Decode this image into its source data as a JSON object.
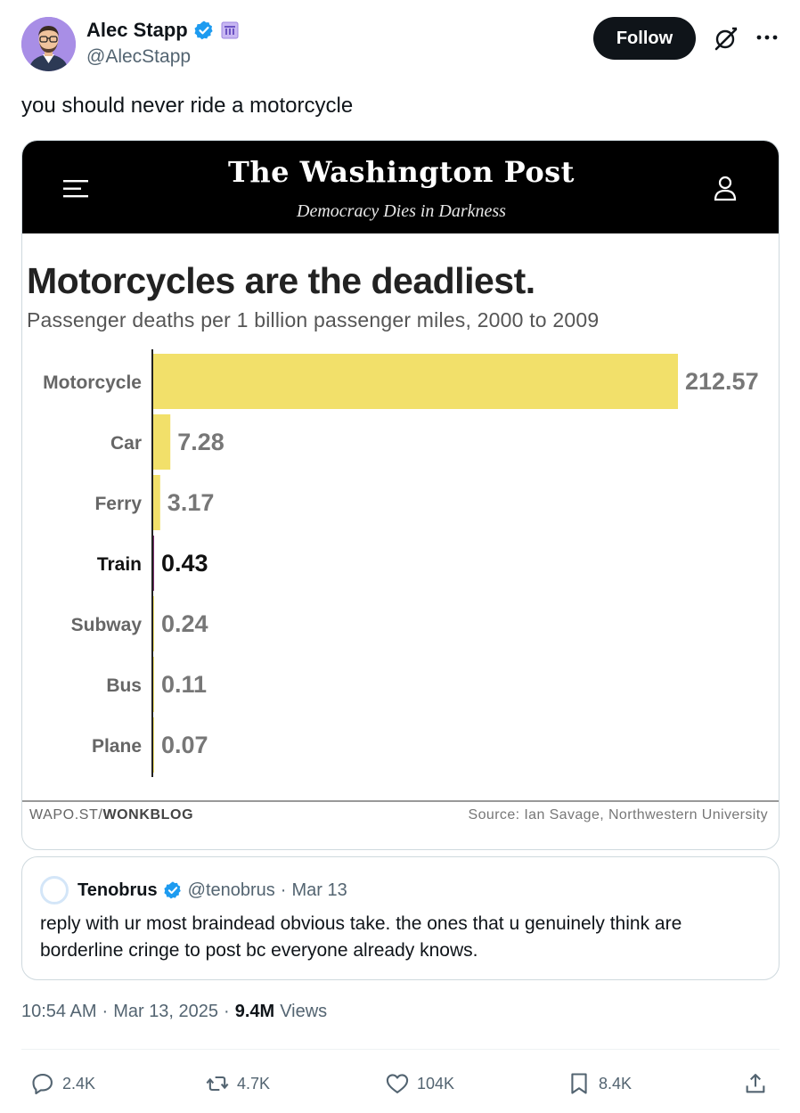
{
  "author": {
    "name": "Alec Stapp",
    "handle": "@AlecStapp",
    "verified": true
  },
  "follow_label": "Follow",
  "tweet_text": "you should never ride a motorcycle",
  "media": {
    "publication": "The Washington Post",
    "tagline": "Democracy Dies in Darkness",
    "footer_left_prefix": "WAPO.ST/",
    "footer_left_bold": "WONKBLOG",
    "footer_right": "Source: Ian Savage, Northwestern University"
  },
  "chart_data": {
    "type": "bar",
    "orientation": "horizontal",
    "title": "Motorcycles are the deadliest.",
    "subtitle": "Passenger deaths per 1 billion passenger miles, 2000 to 2009",
    "categories": [
      "Motorcycle",
      "Car",
      "Ferry",
      "Train",
      "Subway",
      "Bus",
      "Plane"
    ],
    "values": [
      212.57,
      7.28,
      3.17,
      0.43,
      0.24,
      0.11,
      0.07
    ],
    "value_labels": [
      "212.57",
      "7.28",
      "3.17",
      "0.43",
      "0.24",
      "0.11",
      "0.07"
    ],
    "highlight_category": "Train",
    "colors": {
      "bar": "#f2e06a",
      "highlight_bar": "#7b2d6b",
      "label": "#666666",
      "highlight_label": "#111111",
      "value_label": "#777777"
    },
    "xlim": [
      0,
      212.57
    ]
  },
  "quote": {
    "name": "Tenobrus",
    "handle": "@tenobrus",
    "date": "Mar 13",
    "text": "reply with ur most braindead obvious take. the ones that u genuinely think are borderline cringe to post bc everyone already knows."
  },
  "meta": {
    "time": "10:54 AM",
    "date": "Mar 13, 2025",
    "views_count": "9.4M",
    "views_label": "Views"
  },
  "actions": {
    "replies": "2.4K",
    "reposts": "4.7K",
    "likes": "104K",
    "bookmarks": "8.4K"
  },
  "colors": {
    "verified": "#1d9bf0",
    "text_secondary": "#536471",
    "text_primary": "#0f1419"
  }
}
